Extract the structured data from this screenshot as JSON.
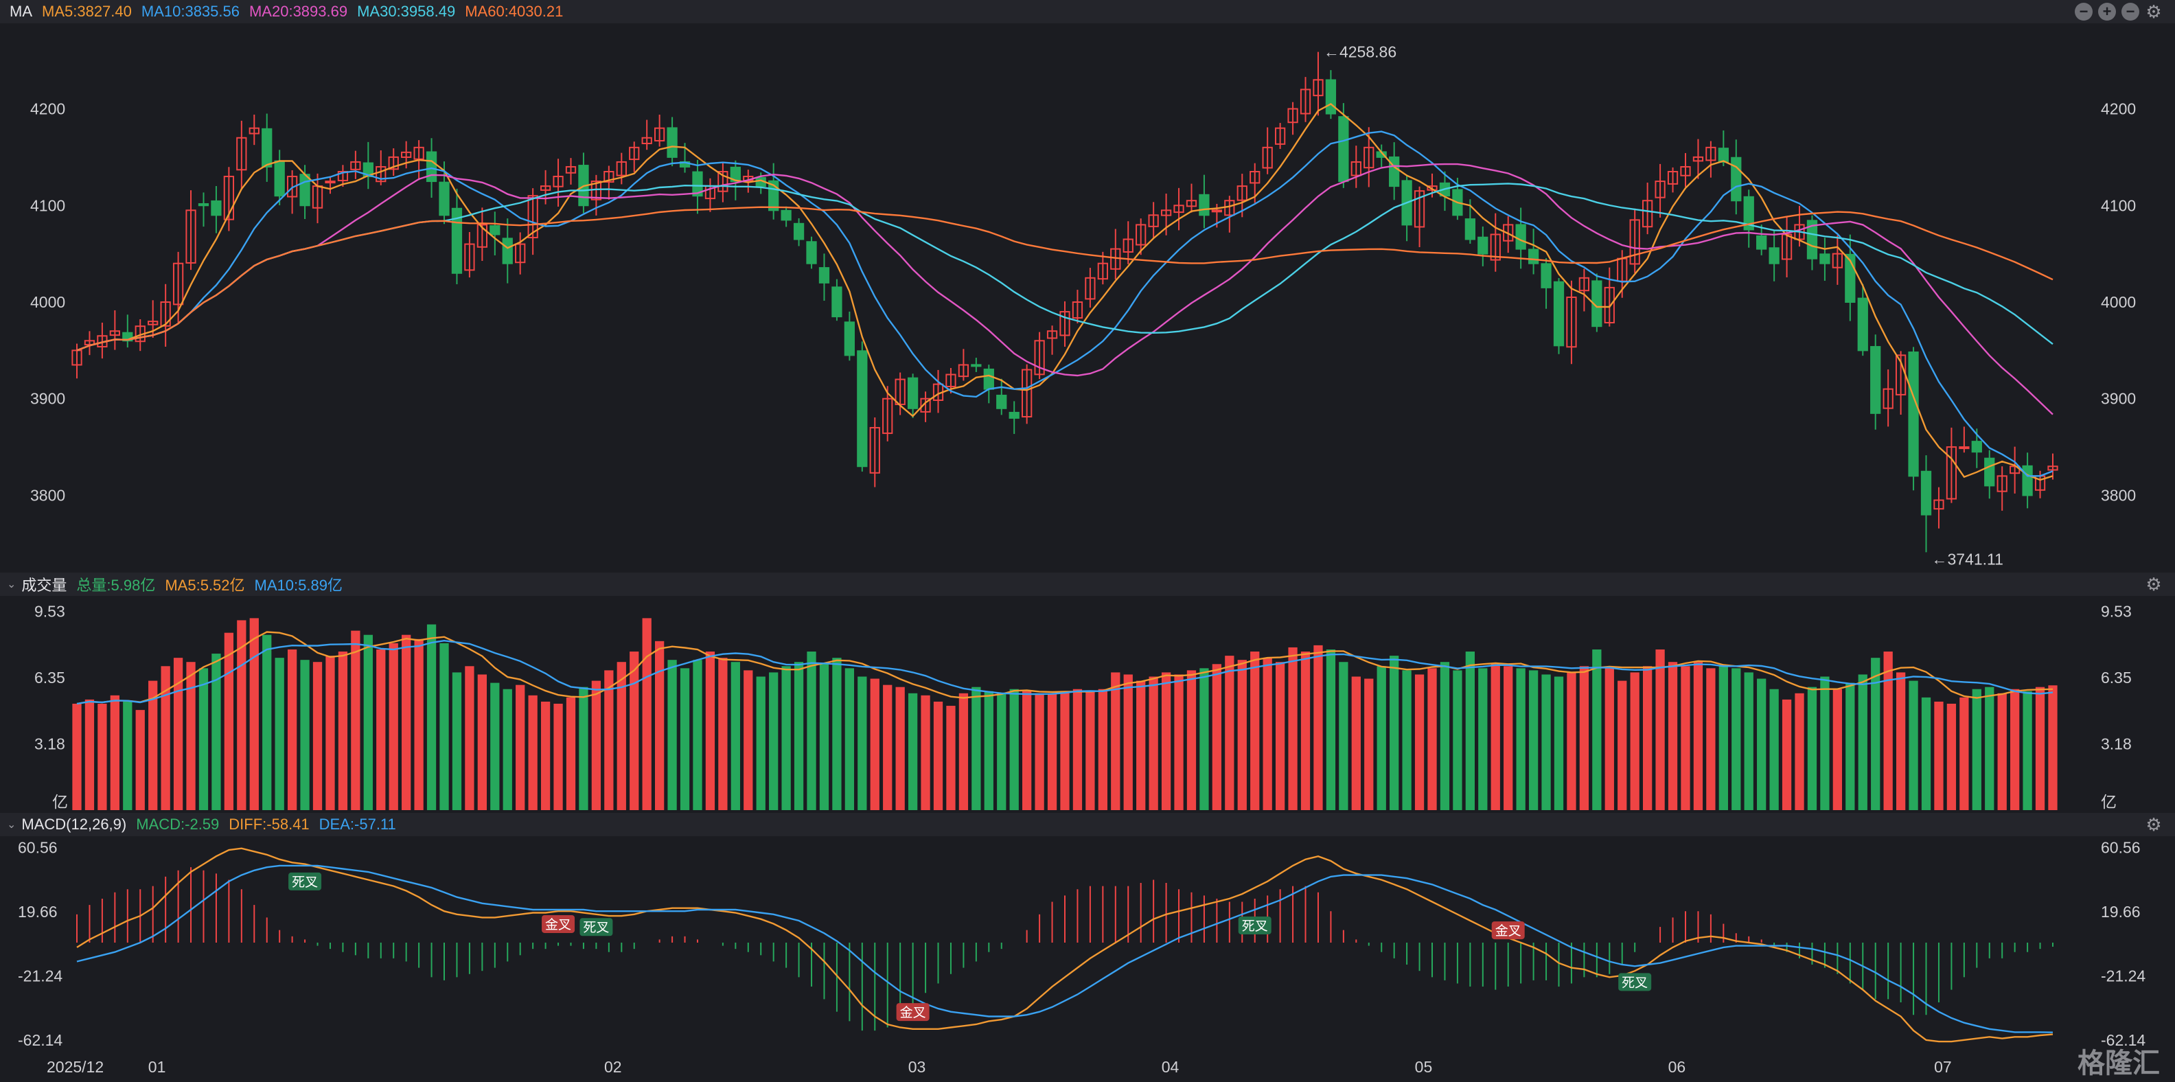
{
  "price_panel": {
    "label": "MA",
    "ma": [
      {
        "text": "MA5:3827.40",
        "color": "#f29a33"
      },
      {
        "text": "MA10:3835.56",
        "color": "#3aa2f2"
      },
      {
        "text": "MA20:3893.69",
        "color": "#e256c4"
      },
      {
        "text": "MA30:3958.49",
        "color": "#4bd0e6"
      },
      {
        "text": "MA60:4030.21",
        "color": "#ff7a3a"
      }
    ],
    "y_ticks": [
      "4200",
      "4100",
      "4000",
      "3900",
      "3800"
    ],
    "high_label": "←4258.86",
    "low_label": "←3741.11"
  },
  "volume_panel": {
    "label": "成交量",
    "items": [
      {
        "text": "总量:5.98亿",
        "color": "#35b36a"
      },
      {
        "text": "MA5:5.52亿",
        "color": "#f29a33"
      },
      {
        "text": "MA10:5.89亿",
        "color": "#3aa2f2"
      }
    ],
    "y_ticks": [
      "9.53",
      "6.35",
      "3.18"
    ],
    "unit": "亿"
  },
  "macd_panel": {
    "label": "MACD(12,26,9)",
    "items": [
      {
        "text": "MACD:-2.59",
        "color": "#35b36a"
      },
      {
        "text": "DIFF:-58.41",
        "color": "#f29a33"
      },
      {
        "text": "DEA:-57.11",
        "color": "#3aa2f2"
      }
    ],
    "y_ticks": [
      {
        "text": "60.56",
        "color": "#f05858"
      },
      {
        "text": "19.66",
        "color": "#f05858"
      },
      {
        "text": "-21.24",
        "color": "#35b36a"
      },
      {
        "text": "-62.14",
        "color": "#35b36a"
      }
    ],
    "cross_gold": "金叉",
    "cross_dead": "死叉"
  },
  "x_labels": [
    "2025/12",
    "01",
    "02",
    "03",
    "04",
    "05",
    "06",
    "07"
  ],
  "watermark": "格隆汇",
  "colors": {
    "up": "#ef4444",
    "down": "#26a85c",
    "bg": "#1b1c21"
  },
  "chart_data": {
    "type": "candlestick",
    "x_ticks": [
      "2025/12",
      "01",
      "02",
      "03",
      "04",
      "05",
      "06",
      "07"
    ],
    "price_ylim": [
      3730,
      4270
    ],
    "high": 4258.86,
    "low": 3741.11,
    "close": [
      3950,
      3960,
      3965,
      3970,
      3960,
      3975,
      3980,
      4000,
      4040,
      4095,
      4100,
      4090,
      4130,
      4170,
      4180,
      4140,
      4110,
      4130,
      4100,
      4120,
      4125,
      4135,
      4145,
      4130,
      4140,
      4150,
      4155,
      4160,
      4125,
      4090,
      4030,
      4060,
      4080,
      4070,
      4040,
      4060,
      4110,
      4120,
      4130,
      4140,
      4100,
      4125,
      4135,
      4145,
      4160,
      4170,
      4180,
      4150,
      4140,
      4110,
      4120,
      4135,
      4125,
      4130,
      4120,
      4095,
      4085,
      4065,
      4040,
      4020,
      3985,
      3945,
      3830,
      3870,
      3900,
      3920,
      3890,
      3900,
      3915,
      3925,
      3935,
      3935,
      3910,
      3890,
      3880,
      3930,
      3960,
      3970,
      3990,
      4000,
      4025,
      4040,
      4055,
      4065,
      4080,
      4090,
      4095,
      4100,
      4105,
      4090,
      4095,
      4105,
      4120,
      4135,
      4160,
      4180,
      4200,
      4220,
      4230,
      4195,
      4125,
      4145,
      4160,
      4150,
      4120,
      4080,
      4115,
      4120,
      4110,
      4090,
      4065,
      4050,
      4070,
      4080,
      4055,
      4040,
      4015,
      3955,
      4005,
      4025,
      3975,
      4015,
      4045,
      4085,
      4105,
      4125,
      4135,
      4140,
      4150,
      4160,
      4145,
      4105,
      4075,
      4055,
      4040,
      4070,
      4080,
      4045,
      4040,
      4050,
      4000,
      3950,
      3885,
      3910,
      3945,
      3820,
      3780,
      3795,
      3850,
      3850,
      3845,
      3810,
      3820,
      3830,
      3800,
      3820,
      3830
    ],
    "volume": [
      5.1,
      5.3,
      5.1,
      5.5,
      5.2,
      4.8,
      6.2,
      6.9,
      7.3,
      7.1,
      6.8,
      7.5,
      8.5,
      9.1,
      9.2,
      8.4,
      7.3,
      7.7,
      7.2,
      7.1,
      7.4,
      7.6,
      8.6,
      8.4,
      7.7,
      8.0,
      8.4,
      8.2,
      8.9,
      8.0,
      6.6,
      6.9,
      6.5,
      6.1,
      5.8,
      6.0,
      5.5,
      5.2,
      5.1,
      5.4,
      5.9,
      6.2,
      6.7,
      7.1,
      7.6,
      9.2,
      8.1,
      7.2,
      6.8,
      7.2,
      7.6,
      7.3,
      7.1,
      6.7,
      6.4,
      6.6,
      6.9,
      7.1,
      7.6,
      7.0,
      7.3,
      6.8,
      6.4,
      6.3,
      6.0,
      5.9,
      5.6,
      5.5,
      5.2,
      5.0,
      5.6,
      5.9,
      5.7,
      5.6,
      5.8,
      5.7,
      5.6,
      5.6,
      5.7,
      5.8,
      5.7,
      5.8,
      6.6,
      6.5,
      6.2,
      6.4,
      6.6,
      6.5,
      6.7,
      6.8,
      7.0,
      7.4,
      7.2,
      7.6,
      7.3,
      7.1,
      7.8,
      7.6,
      7.9,
      7.7,
      7.1,
      6.4,
      6.3,
      6.9,
      7.4,
      6.7,
      6.5,
      6.8,
      7.1,
      6.7,
      7.6,
      6.8,
      7.0,
      6.9,
      6.8,
      6.7,
      6.5,
      6.4,
      6.6,
      6.9,
      7.7,
      6.8,
      6.2,
      6.6,
      6.9,
      7.7,
      7.1,
      6.9,
      7.1,
      6.8,
      6.9,
      6.8,
      6.6,
      6.3,
      5.8,
      5.3,
      5.6,
      5.9,
      6.4,
      5.8,
      6.1,
      6.5,
      7.3,
      7.6,
      6.6,
      6.2,
      5.4,
      5.2,
      5.1,
      5.4,
      5.8,
      5.9,
      5.6,
      5.8,
      5.7,
      5.9,
      5.98
    ],
    "macd_ylim": [
      -66,
      66
    ],
    "diff": [
      -3,
      2,
      6,
      10,
      14,
      17,
      22,
      30,
      38,
      45,
      50,
      55,
      59,
      60,
      58,
      56,
      53,
      51,
      50,
      48,
      46,
      44,
      42,
      40,
      38,
      36,
      33,
      29,
      24,
      20,
      18,
      17,
      16,
      16,
      17,
      18,
      19,
      19,
      20,
      20,
      19,
      18,
      17,
      17,
      18,
      20,
      21,
      22,
      22,
      22,
      21,
      20,
      19,
      17,
      15,
      12,
      8,
      3,
      -4,
      -12,
      -21,
      -30,
      -40,
      -47,
      -52,
      -54,
      -55,
      -55,
      -55,
      -54,
      -53,
      -52,
      -50,
      -49,
      -47,
      -42,
      -35,
      -28,
      -22,
      -16,
      -10,
      -5,
      0,
      5,
      10,
      15,
      18,
      20,
      22,
      24,
      26,
      28,
      31,
      35,
      39,
      44,
      49,
      53,
      55,
      52,
      47,
      44,
      42,
      40,
      37,
      34,
      30,
      26,
      22,
      18,
      14,
      10,
      6,
      3,
      0,
      -3,
      -7,
      -13,
      -16,
      -17,
      -20,
      -22,
      -21,
      -18,
      -14,
      -8,
      -3,
      1,
      3,
      4,
      3,
      1,
      0,
      -1,
      -3,
      -5,
      -8,
      -11,
      -14,
      -18,
      -24,
      -30,
      -37,
      -42,
      -47,
      -56,
      -62,
      -63,
      -63,
      -62,
      -61,
      -60,
      -61,
      -60,
      -60,
      -59,
      -58.41
    ],
    "dea": [
      -12,
      -10,
      -8,
      -6,
      -3,
      0,
      4,
      9,
      15,
      21,
      27,
      33,
      39,
      43,
      46,
      48,
      49,
      49,
      49,
      49,
      48,
      47,
      46,
      45,
      43,
      41,
      39,
      37,
      35,
      32,
      29,
      27,
      25,
      24,
      23,
      22,
      21,
      21,
      21,
      21,
      21,
      20,
      20,
      20,
      20,
      20,
      20,
      20,
      20,
      21,
      21,
      21,
      21,
      20,
      19,
      18,
      16,
      14,
      10,
      6,
      1,
      -5,
      -12,
      -19,
      -25,
      -31,
      -35,
      -39,
      -42,
      -44,
      -45,
      -46,
      -47,
      -47,
      -47,
      -46,
      -44,
      -41,
      -37,
      -33,
      -28,
      -23,
      -18,
      -13,
      -9,
      -5,
      -1,
      3,
      6,
      9,
      12,
      15,
      18,
      21,
      24,
      27,
      31,
      35,
      39,
      42,
      43,
      43,
      43,
      43,
      42,
      41,
      39,
      37,
      34,
      31,
      28,
      24,
      21,
      17,
      13,
      9,
      5,
      1,
      -3,
      -6,
      -9,
      -12,
      -14,
      -15,
      -14,
      -13,
      -11,
      -9,
      -7,
      -5,
      -3,
      -2,
      -2,
      -2,
      -2,
      -2,
      -3,
      -4,
      -6,
      -8,
      -11,
      -15,
      -19,
      -24,
      -28,
      -33,
      -39,
      -44,
      -48,
      -51,
      -53,
      -55,
      -56,
      -57,
      -57,
      -57,
      -57.11
    ],
    "series": [
      {
        "name": "MA5",
        "value": 3827.4
      },
      {
        "name": "MA10",
        "value": 3835.56
      },
      {
        "name": "MA20",
        "value": 3893.69
      },
      {
        "name": "MA30",
        "value": 3958.49
      },
      {
        "name": "MA60",
        "value": 4030.21
      }
    ],
    "crosses": [
      {
        "type": "dead",
        "index": 18
      },
      {
        "type": "gold",
        "index": 38
      },
      {
        "type": "dead",
        "index": 41
      },
      {
        "type": "gold",
        "index": 66
      },
      {
        "type": "dead",
        "index": 93
      },
      {
        "type": "gold",
        "index": 113
      },
      {
        "type": "dead",
        "index": 123
      }
    ]
  }
}
